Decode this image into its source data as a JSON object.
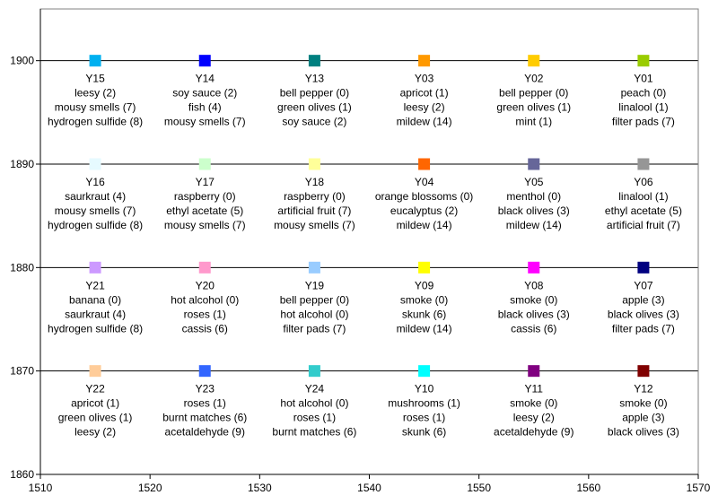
{
  "chart_data": {
    "type": "scatter",
    "title": "",
    "xlabel": "",
    "ylabel": "",
    "xlim": [
      1510,
      1570
    ],
    "ylim": [
      1860,
      1905
    ],
    "x_ticks": [
      1510,
      1520,
      1530,
      1540,
      1550,
      1560,
      1570
    ],
    "y_ticks": [
      1860,
      1870,
      1880,
      1890,
      1900
    ],
    "grid": "horizontal major gridlines",
    "legend": "none",
    "points": [
      {
        "id": "Y15",
        "x": 1515,
        "y": 1900,
        "color": "#00b0f0",
        "lines": [
          "leesy (2)",
          "mousy smells (7)",
          "hydrogen sulfide (8)"
        ]
      },
      {
        "id": "Y14",
        "x": 1525,
        "y": 1900,
        "color": "#0000ff",
        "lines": [
          "soy sauce (2)",
          "fish (4)",
          "mousy smells (7)"
        ]
      },
      {
        "id": "Y13",
        "x": 1535,
        "y": 1900,
        "color": "#008080",
        "lines": [
          "bell pepper (0)",
          "green olives (1)",
          "soy sauce (2)"
        ]
      },
      {
        "id": "Y03",
        "x": 1545,
        "y": 1900,
        "color": "#ff9900",
        "lines": [
          "apricot (1)",
          "leesy (2)",
          "mildew (14)"
        ]
      },
      {
        "id": "Y02",
        "x": 1555,
        "y": 1900,
        "color": "#ffcc00",
        "lines": [
          "bell pepper (0)",
          "green olives (1)",
          "mint (1)"
        ]
      },
      {
        "id": "Y01",
        "x": 1565,
        "y": 1900,
        "color": "#99cc00",
        "lines": [
          "peach (0)",
          "linalool (1)",
          "filter pads (7)"
        ]
      },
      {
        "id": "Y16",
        "x": 1515,
        "y": 1890,
        "color": "#e6faff",
        "lines": [
          "saurkraut (4)",
          "mousy smells (7)",
          "hydrogen sulfide (8)"
        ]
      },
      {
        "id": "Y17",
        "x": 1525,
        "y": 1890,
        "color": "#ccffcc",
        "lines": [
          "raspberry (0)",
          "ethyl acetate (5)",
          "mousy smells (7)"
        ]
      },
      {
        "id": "Y18",
        "x": 1535,
        "y": 1890,
        "color": "#ffff99",
        "lines": [
          "raspberry (0)",
          "artificial fruit (7)",
          "mousy smells (7)"
        ]
      },
      {
        "id": "Y04",
        "x": 1545,
        "y": 1890,
        "color": "#ff6600",
        "lines": [
          "orange blossoms (0)",
          "eucalyptus (2)",
          "mildew (14)"
        ]
      },
      {
        "id": "Y05",
        "x": 1555,
        "y": 1890,
        "color": "#666699",
        "lines": [
          "menthol (0)",
          "black olives (3)",
          "mildew (14)"
        ]
      },
      {
        "id": "Y06",
        "x": 1565,
        "y": 1890,
        "color": "#969696",
        "lines": [
          "linalool (1)",
          "ethyl acetate (5)",
          "artificial fruit (7)"
        ]
      },
      {
        "id": "Y21",
        "x": 1515,
        "y": 1880,
        "color": "#cc99ff",
        "lines": [
          "banana (0)",
          "saurkraut (4)",
          "hydrogen sulfide (8)"
        ]
      },
      {
        "id": "Y20",
        "x": 1525,
        "y": 1880,
        "color": "#ff99cc",
        "lines": [
          "hot alcohol (0)",
          "roses (1)",
          "cassis (6)"
        ]
      },
      {
        "id": "Y19",
        "x": 1535,
        "y": 1880,
        "color": "#99ccff",
        "lines": [
          "bell pepper (0)",
          "hot alcohol (0)",
          "filter pads (7)"
        ]
      },
      {
        "id": "Y09",
        "x": 1545,
        "y": 1880,
        "color": "#ffff00",
        "lines": [
          "smoke (0)",
          "skunk (6)",
          "mildew (14)"
        ]
      },
      {
        "id": "Y08",
        "x": 1555,
        "y": 1880,
        "color": "#ff00ff",
        "lines": [
          "smoke (0)",
          "black olives (3)",
          "cassis (6)"
        ]
      },
      {
        "id": "Y07",
        "x": 1565,
        "y": 1880,
        "color": "#000080",
        "lines": [
          "apple (3)",
          "black olives (3)",
          "filter pads (7)"
        ]
      },
      {
        "id": "Y22",
        "x": 1515,
        "y": 1870,
        "color": "#ffcc99",
        "lines": [
          "apricot (1)",
          "green olives (1)",
          "leesy (2)"
        ]
      },
      {
        "id": "Y23",
        "x": 1525,
        "y": 1870,
        "color": "#3366ff",
        "lines": [
          "roses (1)",
          "burnt matches (6)",
          "acetaldehyde (9)"
        ]
      },
      {
        "id": "Y24",
        "x": 1535,
        "y": 1870,
        "color": "#33cccc",
        "lines": [
          "hot alcohol (0)",
          "roses (1)",
          "burnt matches (6)"
        ]
      },
      {
        "id": "Y10",
        "x": 1545,
        "y": 1870,
        "color": "#00ffff",
        "lines": [
          "mushrooms (1)",
          "roses (1)",
          "skunk (6)"
        ]
      },
      {
        "id": "Y11",
        "x": 1555,
        "y": 1870,
        "color": "#800080",
        "lines": [
          "smoke (0)",
          "leesy (2)",
          "acetaldehyde (9)"
        ]
      },
      {
        "id": "Y12",
        "x": 1565,
        "y": 1870,
        "color": "#800000",
        "lines": [
          "smoke (0)",
          "apple (3)",
          "black olives (3)"
        ]
      }
    ]
  }
}
